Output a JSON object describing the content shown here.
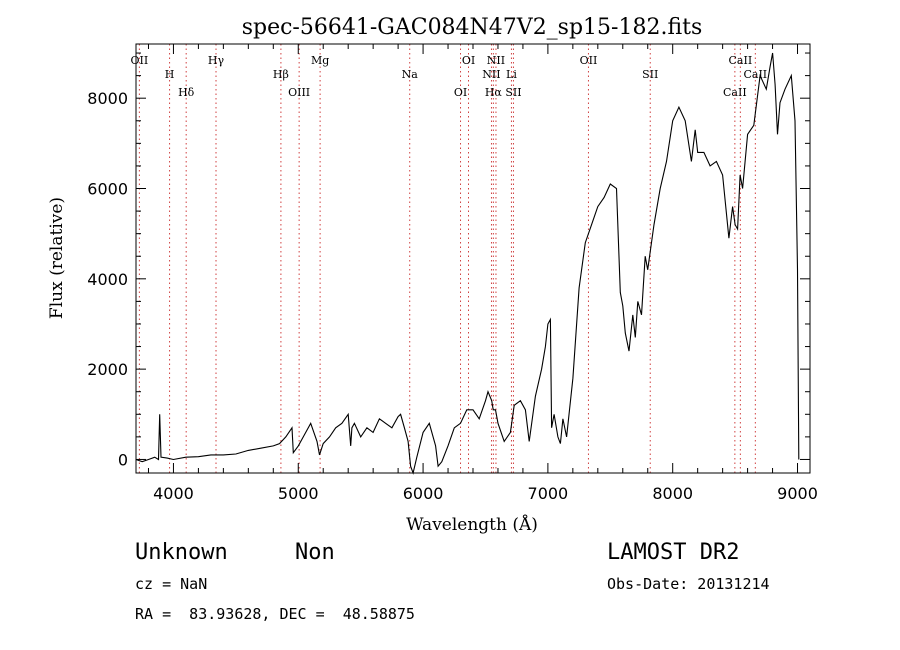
{
  "chart_data": {
    "type": "line",
    "title": "spec-56641-GAC084N47V2_sp15-182.fits",
    "xlabel": "Wavelength (Å)",
    "ylabel": "Flux (relative)",
    "xlim": [
      3700,
      9100
    ],
    "ylim": [
      -300,
      9200
    ],
    "xticks": [
      4000,
      5000,
      6000,
      7000,
      8000,
      9000
    ],
    "yticks": [
      0,
      2000,
      4000,
      6000,
      8000
    ],
    "grid": false,
    "series": [
      {
        "x": [
          3700,
          3750,
          3800,
          3850,
          3880,
          3890,
          3900,
          3950,
          4000,
          4100,
          4200,
          4300,
          4400,
          4500,
          4600,
          4700,
          4800,
          4850,
          4900,
          4950,
          4960,
          5000,
          5050,
          5100,
          5150,
          5170,
          5200,
          5250,
          5300,
          5350,
          5400,
          5420,
          5430,
          5450,
          5500,
          5550,
          5600,
          5650,
          5700,
          5750,
          5800,
          5820,
          5850,
          5880,
          5900,
          5920,
          5950,
          6000,
          6050,
          6100,
          6120,
          6150,
          6200,
          6250,
          6300,
          6350,
          6400,
          6450,
          6500,
          6520,
          6550,
          6562,
          6580,
          6600,
          6650,
          6700,
          6730,
          6780,
          6820,
          6850,
          6900,
          6950,
          6980,
          7000,
          7020,
          7030,
          7050,
          7080,
          7100,
          7120,
          7150,
          7200,
          7250,
          7300,
          7350,
          7400,
          7450,
          7500,
          7550,
          7580,
          7600,
          7620,
          7650,
          7680,
          7700,
          7720,
          7750,
          7780,
          7800,
          7850,
          7900,
          7950,
          8000,
          8050,
          8100,
          8150,
          8180,
          8200,
          8250,
          8300,
          8350,
          8400,
          8450,
          8480,
          8500,
          8520,
          8540,
          8560,
          8600,
          8650,
          8700,
          8750,
          8780,
          8800,
          8820,
          8840,
          8860,
          8900,
          8950,
          8980,
          9000,
          9010
        ],
        "y": [
          0,
          -50,
          0,
          50,
          0,
          1000,
          50,
          30,
          0,
          50,
          60,
          100,
          100,
          120,
          200,
          250,
          300,
          350,
          500,
          700,
          150,
          300,
          550,
          800,
          400,
          100,
          350,
          500,
          700,
          800,
          1000,
          300,
          700,
          800,
          500,
          700,
          600,
          900,
          800,
          700,
          950,
          1000,
          700,
          400,
          -150,
          -300,
          50,
          600,
          800,
          300,
          -150,
          -50,
          300,
          700,
          800,
          1100,
          1100,
          900,
          1300,
          1500,
          1300,
          1100,
          1100,
          800,
          400,
          600,
          1200,
          1300,
          1100,
          400,
          1400,
          2000,
          2500,
          3000,
          3100,
          700,
          1000,
          500,
          350,
          900,
          500,
          1800,
          3800,
          4800,
          5200,
          5600,
          5800,
          6100,
          6000,
          3700,
          3400,
          2800,
          2400,
          3200,
          2700,
          3500,
          3200,
          4500,
          4200,
          5200,
          6000,
          6600,
          7500,
          7800,
          7500,
          6600,
          7300,
          6800,
          6800,
          6500,
          6600,
          6300,
          4900,
          5600,
          5200,
          5100,
          6300,
          6000,
          7200,
          7400,
          8500,
          8200,
          8700,
          9000,
          8300,
          7200,
          7900,
          8200,
          8500,
          7500,
          4200,
          0
        ]
      }
    ],
    "reference_lines": [
      {
        "label": "OII",
        "x": 3727
      },
      {
        "label": "H",
        "x": 3969
      },
      {
        "label": "Hδ",
        "x": 4102
      },
      {
        "label": "Hγ",
        "x": 4341
      },
      {
        "label": "Hβ",
        "x": 4861
      },
      {
        "label": "OIII",
        "x": 5007
      },
      {
        "label": "Mg",
        "x": 5175
      },
      {
        "label": "Na",
        "x": 5893
      },
      {
        "label": "OI",
        "x": 6300
      },
      {
        "label": "OI",
        "x": 6364
      },
      {
        "label": "NII",
        "x": 6548
      },
      {
        "label": "Hα",
        "x": 6563
      },
      {
        "label": "NII",
        "x": 6584
      },
      {
        "label": "Li",
        "x": 6708
      },
      {
        "label": "SII",
        "x": 6724
      },
      {
        "label": "OII",
        "x": 7325
      },
      {
        "label": "SII",
        "x": 7820
      },
      {
        "label": "CaII",
        "x": 8498
      },
      {
        "label": "CaII",
        "x": 8542
      },
      {
        "label": "CaII",
        "x": 8662
      }
    ]
  },
  "footer": {
    "object_class": "Unknown",
    "subclass": "Non",
    "survey": "LAMOST DR2",
    "redshift": "cz = NaN",
    "obs_date": "Obs-Date: 20131214",
    "coords": "RA =  83.93628, DEC =  48.58875"
  }
}
